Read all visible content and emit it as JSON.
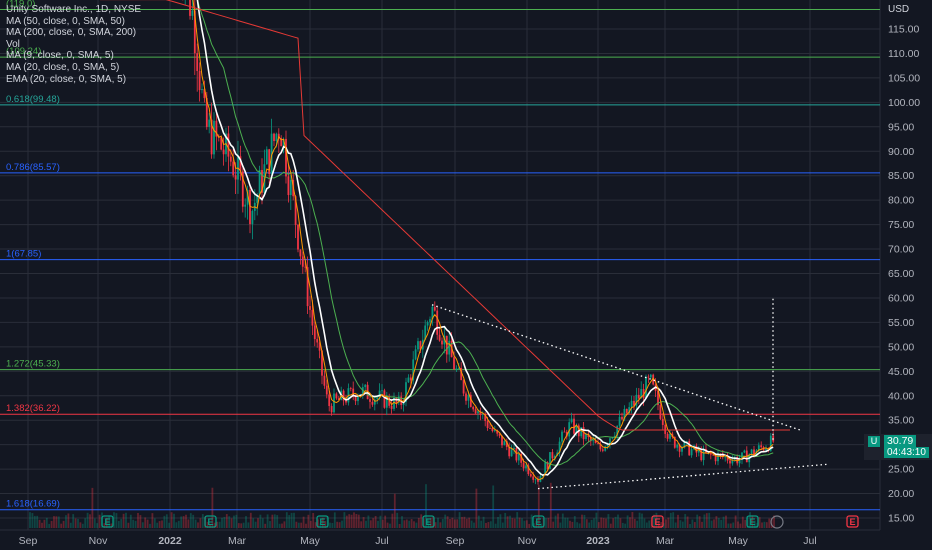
{
  "legend": {
    "symbol_line": "Unity Software Inc., 1D, NYSE",
    "ma50": "MA (50, close, 0, SMA, 50)",
    "ma200": "MA (200, close, 0, SMA, 200)",
    "vol": "Vol",
    "ma9": "MA (9, close, 0, SMA, 5)",
    "ma20": "MA (20, close, 0, SMA, 5)",
    "ema20": "EMA (20, close, 0, SMA, 5)"
  },
  "currency": "USD",
  "last_price": {
    "symbol": "U",
    "price": "30.79",
    "countdown": "04:43:10"
  },
  "colors": {
    "background": "#131722",
    "grid": "#2a2e39",
    "up": "#089981",
    "down": "#f23645",
    "ma50": "#4caf50",
    "ma200": "#e53935",
    "ma_white": "#ffffff",
    "ma_orange": "#ff9800",
    "fib_blue": "#2962ff",
    "fib_green": "#4caf50",
    "fib_red": "#f23645",
    "trend": "#ffffff"
  },
  "chart_data": {
    "type": "candlestick",
    "title": "Unity Software Inc., 1D, NYSE",
    "y_axis": {
      "ticks": [
        15,
        20,
        25,
        30,
        35,
        40,
        45,
        50,
        55,
        60,
        65,
        70,
        75,
        80,
        85,
        90,
        95,
        100,
        105,
        110,
        115
      ],
      "unit": "USD",
      "ylim": [
        13,
        121
      ]
    },
    "x_axis": {
      "ticks": [
        "Sep",
        "Nov",
        "2022",
        "Mar",
        "May",
        "Jul",
        "Sep",
        "Nov",
        "2023",
        "Mar",
        "May",
        "Jul"
      ]
    },
    "fib_levels": [
      {
        "label": "1.382(36.22)",
        "value": 36.22,
        "color": "#f23645"
      },
      {
        "label": "1.272(45.33)",
        "value": 45.33,
        "color": "#4caf50"
      },
      {
        "label": "1(67.85)",
        "value": 67.85,
        "color": "#2962ff"
      },
      {
        "label": "0.786(85.57)",
        "value": 85.57,
        "color": "#2962ff"
      },
      {
        "label": "0.618(99.48)",
        "value": 99.48,
        "color": "#26a69a"
      },
      {
        "label": "(109.24)",
        "value": 109.24,
        "color": "#4caf50"
      },
      {
        "label": "(119.0)",
        "value": 119.0,
        "color": "#4caf50"
      },
      {
        "label": "1.618(16.69)",
        "value": 16.69,
        "color": "#2962ff"
      }
    ],
    "price_path": [
      [
        "Dec 2021",
        135
      ],
      [
        "Jan 2022",
        115
      ],
      [
        "Feb 2022",
        95
      ],
      [
        "Mar 2022",
        88
      ],
      [
        "Mar 2022b",
        78
      ],
      [
        "Apr 2022",
        96
      ],
      [
        "May 2022",
        55
      ],
      [
        "May 2022b",
        38
      ],
      [
        "Jun 2022",
        41
      ],
      [
        "Jul 2022",
        38
      ],
      [
        "Aug 2022",
        58
      ],
      [
        "Sep 2022",
        42
      ],
      [
        "Oct 2022",
        32
      ],
      [
        "Nov 2022",
        23
      ],
      [
        "Dec 2022",
        34
      ],
      [
        "Jan 2023",
        29
      ],
      [
        "Feb 2023",
        43
      ],
      [
        "Mar 2023",
        31
      ],
      [
        "Apr 2023",
        28
      ],
      [
        "May 2023",
        27
      ],
      [
        "Jun 2023",
        30.79
      ]
    ],
    "trendlines": [
      {
        "from": [
          "Aug 2022",
          58.6
        ],
        "to": [
          "Jun 2023",
          33
        ]
      },
      {
        "from": [
          "Nov 2022",
          21
        ],
        "to": [
          "Jul 2023",
          26
        ]
      }
    ],
    "projection": {
      "x": "Jun 2023",
      "from": 31,
      "to": 60
    },
    "events": [
      "E",
      "E",
      "E",
      "E",
      "E",
      "E",
      "E",
      "E",
      "E",
      "E"
    ]
  }
}
